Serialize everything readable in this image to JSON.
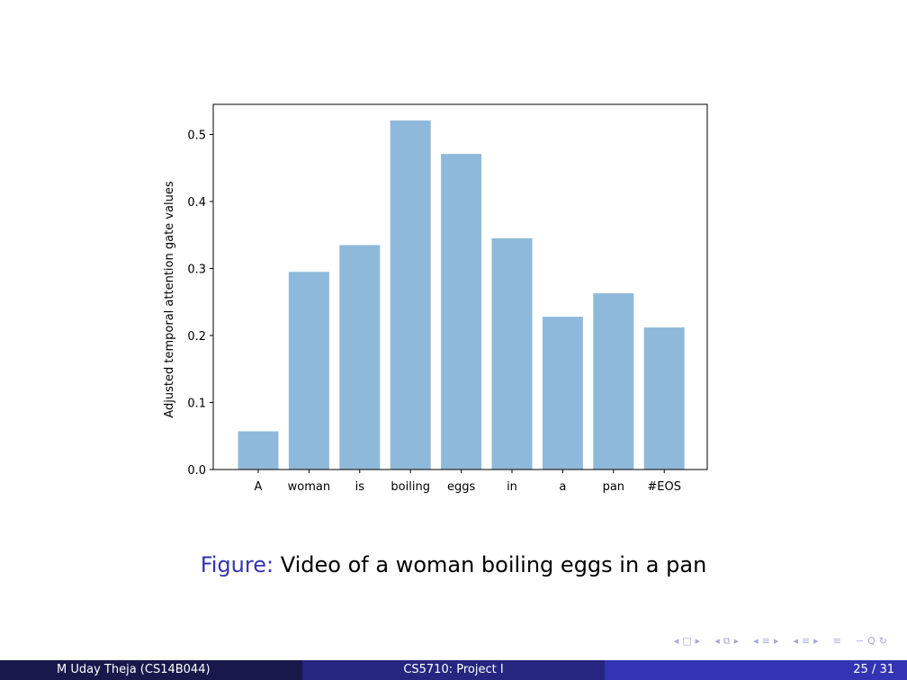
{
  "chart_data": {
    "type": "bar",
    "categories": [
      "A",
      "woman",
      "is",
      "boiling",
      "eggs",
      "in",
      "a",
      "pan",
      "#EOS"
    ],
    "values": [
      0.057,
      0.295,
      0.335,
      0.521,
      0.471,
      0.345,
      0.228,
      0.263,
      0.212
    ],
    "ylabel": "Adjusted temporal attention gate values",
    "xlabel": "",
    "ylim": [
      0,
      0.545
    ],
    "yticks": [
      0.0,
      0.1,
      0.2,
      0.3,
      0.4,
      0.5
    ],
    "ytick_labels": [
      "0.0",
      "0.1",
      "0.2",
      "0.3",
      "0.4",
      "0.5"
    ],
    "bar_color": "#8fb9da",
    "grid": false
  },
  "caption": {
    "label": "Figure:",
    "text": "Video of a woman boiling eggs in a pan"
  },
  "nav": {
    "icons": [
      "◂",
      "□",
      "▸",
      "◂",
      "⧉",
      "▸",
      "◂",
      "≡",
      "▸",
      "◂",
      "≡",
      "▸",
      "≡",
      "∽",
      "Q",
      "↻"
    ]
  },
  "footer": {
    "author": "M Uday Theja  (CS14B044)",
    "title": "CS5710: Project I",
    "page": "25 / 31"
  },
  "colors": {
    "footer_left": "#18184b",
    "footer_mid": "#262680",
    "footer_right": "#3333b3",
    "caption_label": "#3333b3"
  }
}
